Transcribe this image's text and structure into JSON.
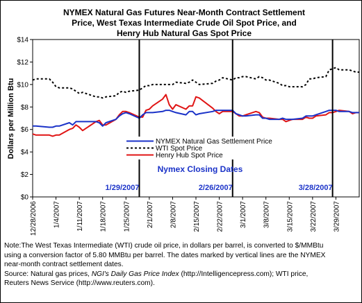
{
  "chart_data": {
    "type": "line",
    "title_lines": [
      "NYMEX Natural Gas Futures Near-Month Contract Settlement",
      "Price, West Texas Intermediate Crude Oil Spot Price, and",
      "Henry Hub Natural Gas Spot Price"
    ],
    "ylabel": "Dollars per Million Btu",
    "xlabel": "",
    "ylim": [
      0,
      14
    ],
    "yticks": [
      "$0",
      "$2",
      "$4",
      "$6",
      "$8",
      "$10",
      "$12",
      "$14"
    ],
    "yticks_values": [
      0,
      2,
      4,
      6,
      8,
      10,
      12,
      14
    ],
    "x_start": "2006-12-28",
    "x_end": "2007-04-05",
    "xtick_labels": [
      "12/28/2006",
      "1/4/2007",
      "1/11/2007",
      "1/18/2007",
      "1/25/2007",
      "2/1/2007",
      "2/8/2007",
      "2/15/2007",
      "2/22/2007",
      "3/1/2007",
      "3/8/2007",
      "3/15/2007",
      "3/22/2007",
      "3/29/2007"
    ],
    "xtick_dates": [
      "2006-12-28",
      "2007-01-04",
      "2007-01-11",
      "2007-01-18",
      "2007-01-25",
      "2007-02-01",
      "2007-02-08",
      "2007-02-15",
      "2007-02-22",
      "2007-03-01",
      "2007-03-08",
      "2007-03-15",
      "2007-03-22",
      "2007-03-29"
    ],
    "series": [
      {
        "name": "NYMEX Natural Gas Settlement Price",
        "color": "#1a32c8",
        "style": "solid",
        "points": [
          [
            "2006-12-28",
            6.3
          ],
          [
            "2006-12-29",
            6.3
          ],
          [
            "2007-01-02",
            6.2
          ],
          [
            "2007-01-03",
            6.2
          ],
          [
            "2007-01-04",
            6.3
          ],
          [
            "2007-01-05",
            6.3
          ],
          [
            "2007-01-08",
            6.6
          ],
          [
            "2007-01-09",
            6.4
          ],
          [
            "2007-01-10",
            6.7
          ],
          [
            "2007-01-11",
            6.7
          ],
          [
            "2007-01-12",
            6.7
          ],
          [
            "2007-01-16",
            6.7
          ],
          [
            "2007-01-17",
            6.6
          ],
          [
            "2007-01-18",
            6.3
          ],
          [
            "2007-01-19",
            6.6
          ],
          [
            "2007-01-22",
            6.9
          ],
          [
            "2007-01-23",
            7.2
          ],
          [
            "2007-01-24",
            7.4
          ],
          [
            "2007-01-25",
            7.5
          ],
          [
            "2007-01-26",
            7.4
          ],
          [
            "2007-01-29",
            7.0
          ],
          [
            "2007-01-30",
            7.3
          ],
          [
            "2007-01-31",
            7.5
          ],
          [
            "2007-02-01",
            7.5
          ],
          [
            "2007-02-02",
            7.5
          ],
          [
            "2007-02-05",
            7.6
          ],
          [
            "2007-02-06",
            7.7
          ],
          [
            "2007-02-07",
            7.7
          ],
          [
            "2007-02-08",
            7.6
          ],
          [
            "2007-02-09",
            7.5
          ],
          [
            "2007-02-12",
            7.3
          ],
          [
            "2007-02-13",
            7.6
          ],
          [
            "2007-02-14",
            7.6
          ],
          [
            "2007-02-15",
            7.3
          ],
          [
            "2007-02-16",
            7.4
          ],
          [
            "2007-02-20",
            7.6
          ],
          [
            "2007-02-21",
            7.7
          ],
          [
            "2007-02-22",
            7.7
          ],
          [
            "2007-02-23",
            7.7
          ],
          [
            "2007-02-26",
            7.7
          ],
          [
            "2007-02-27",
            7.4
          ],
          [
            "2007-02-28",
            7.3
          ],
          [
            "2007-03-01",
            7.2
          ],
          [
            "2007-03-02",
            7.2
          ],
          [
            "2007-03-05",
            7.3
          ],
          [
            "2007-03-06",
            7.3
          ],
          [
            "2007-03-07",
            7.0
          ],
          [
            "2007-03-08",
            7.0
          ],
          [
            "2007-03-09",
            6.9
          ],
          [
            "2007-03-12",
            6.9
          ],
          [
            "2007-03-13",
            7.0
          ],
          [
            "2007-03-14",
            6.9
          ],
          [
            "2007-03-15",
            6.9
          ],
          [
            "2007-03-16",
            6.9
          ],
          [
            "2007-03-19",
            7.0
          ],
          [
            "2007-03-20",
            7.2
          ],
          [
            "2007-03-21",
            7.2
          ],
          [
            "2007-03-22",
            7.2
          ],
          [
            "2007-03-23",
            7.3
          ],
          [
            "2007-03-26",
            7.6
          ],
          [
            "2007-03-27",
            7.7
          ],
          [
            "2007-03-28",
            7.7
          ],
          [
            "2007-03-29",
            7.7
          ],
          [
            "2007-03-30",
            7.6
          ],
          [
            "2007-04-02",
            7.6
          ],
          [
            "2007-04-03",
            7.5
          ],
          [
            "2007-04-04",
            7.5
          ],
          [
            "2007-04-05",
            7.5
          ]
        ]
      },
      {
        "name": "WTI Spot Price",
        "color": "#000000",
        "style": "dotted",
        "points": [
          [
            "2006-12-28",
            10.4
          ],
          [
            "2006-12-29",
            10.5
          ],
          [
            "2007-01-02",
            10.5
          ],
          [
            "2007-01-03",
            10.2
          ],
          [
            "2007-01-04",
            9.8
          ],
          [
            "2007-01-05",
            9.7
          ],
          [
            "2007-01-08",
            9.7
          ],
          [
            "2007-01-09",
            9.6
          ],
          [
            "2007-01-10",
            9.4
          ],
          [
            "2007-01-11",
            9.2
          ],
          [
            "2007-01-12",
            9.3
          ],
          [
            "2007-01-16",
            8.9
          ],
          [
            "2007-01-17",
            8.9
          ],
          [
            "2007-01-18",
            8.8
          ],
          [
            "2007-01-19",
            8.9
          ],
          [
            "2007-01-22",
            9.0
          ],
          [
            "2007-01-23",
            9.3
          ],
          [
            "2007-01-24",
            9.4
          ],
          [
            "2007-01-25",
            9.3
          ],
          [
            "2007-01-26",
            9.4
          ],
          [
            "2007-01-29",
            9.5
          ],
          [
            "2007-01-30",
            9.7
          ],
          [
            "2007-01-31",
            9.9
          ],
          [
            "2007-02-01",
            9.9
          ],
          [
            "2007-02-02",
            10.0
          ],
          [
            "2007-02-05",
            10.0
          ],
          [
            "2007-02-06",
            10.0
          ],
          [
            "2007-02-07",
            10.0
          ],
          [
            "2007-02-08",
            10.0
          ],
          [
            "2007-02-09",
            10.2
          ],
          [
            "2007-02-12",
            10.1
          ],
          [
            "2007-02-13",
            10.2
          ],
          [
            "2007-02-14",
            10.4
          ],
          [
            "2007-02-15",
            10.2
          ],
          [
            "2007-02-16",
            10.0
          ],
          [
            "2007-02-20",
            10.1
          ],
          [
            "2007-02-21",
            10.3
          ],
          [
            "2007-02-22",
            10.4
          ],
          [
            "2007-02-23",
            10.6
          ],
          [
            "2007-02-26",
            10.4
          ],
          [
            "2007-02-27",
            10.6
          ],
          [
            "2007-02-28",
            10.6
          ],
          [
            "2007-03-01",
            10.7
          ],
          [
            "2007-03-02",
            10.7
          ],
          [
            "2007-03-05",
            10.5
          ],
          [
            "2007-03-06",
            10.7
          ],
          [
            "2007-03-07",
            10.6
          ],
          [
            "2007-03-08",
            10.4
          ],
          [
            "2007-03-09",
            10.4
          ],
          [
            "2007-03-12",
            10.1
          ],
          [
            "2007-03-13",
            9.9
          ],
          [
            "2007-03-14",
            9.9
          ],
          [
            "2007-03-15",
            9.8
          ],
          [
            "2007-03-16",
            9.8
          ],
          [
            "2007-03-19",
            9.8
          ],
          [
            "2007-03-20",
            10.0
          ],
          [
            "2007-03-21",
            10.5
          ],
          [
            "2007-03-22",
            10.5
          ],
          [
            "2007-03-23",
            10.6
          ],
          [
            "2007-03-26",
            10.7
          ],
          [
            "2007-03-27",
            11.3
          ],
          [
            "2007-03-28",
            11.4
          ],
          [
            "2007-03-29",
            11.5
          ],
          [
            "2007-03-30",
            11.3
          ],
          [
            "2007-04-02",
            11.3
          ],
          [
            "2007-04-03",
            11.2
          ],
          [
            "2007-04-04",
            11.1
          ],
          [
            "2007-04-05",
            11.1
          ]
        ]
      },
      {
        "name": "Henry Hub Spot Price",
        "color": "#e01414",
        "style": "solid",
        "points": [
          [
            "2006-12-28",
            5.6
          ],
          [
            "2006-12-29",
            5.5
          ],
          [
            "2007-01-02",
            5.5
          ],
          [
            "2007-01-03",
            5.4
          ],
          [
            "2007-01-04",
            5.5
          ],
          [
            "2007-01-05",
            5.5
          ],
          [
            "2007-01-08",
            6.0
          ],
          [
            "2007-01-09",
            6.1
          ],
          [
            "2007-01-10",
            6.4
          ],
          [
            "2007-01-11",
            6.2
          ],
          [
            "2007-01-12",
            5.9
          ],
          [
            "2007-01-16",
            6.7
          ],
          [
            "2007-01-17",
            6.8
          ],
          [
            "2007-01-18",
            6.4
          ],
          [
            "2007-01-19",
            6.4
          ],
          [
            "2007-01-22",
            6.9
          ],
          [
            "2007-01-23",
            7.3
          ],
          [
            "2007-01-24",
            7.6
          ],
          [
            "2007-01-25",
            7.6
          ],
          [
            "2007-01-26",
            7.5
          ],
          [
            "2007-01-29",
            7.1
          ],
          [
            "2007-01-30",
            7.1
          ],
          [
            "2007-01-31",
            7.7
          ],
          [
            "2007-02-01",
            7.8
          ],
          [
            "2007-02-02",
            8.1
          ],
          [
            "2007-02-05",
            8.7
          ],
          [
            "2007-02-06",
            9.1
          ],
          [
            "2007-02-07",
            8.2
          ],
          [
            "2007-02-08",
            7.8
          ],
          [
            "2007-02-09",
            8.2
          ],
          [
            "2007-02-12",
            7.8
          ],
          [
            "2007-02-13",
            8.1
          ],
          [
            "2007-02-14",
            8.1
          ],
          [
            "2007-02-15",
            8.9
          ],
          [
            "2007-02-16",
            8.8
          ],
          [
            "2007-02-20",
            7.9
          ],
          [
            "2007-02-21",
            7.6
          ],
          [
            "2007-02-22",
            7.4
          ],
          [
            "2007-02-23",
            7.6
          ],
          [
            "2007-02-26",
            7.6
          ],
          [
            "2007-02-27",
            7.4
          ],
          [
            "2007-02-28",
            7.2
          ],
          [
            "2007-03-01",
            7.2
          ],
          [
            "2007-03-02",
            7.3
          ],
          [
            "2007-03-05",
            7.6
          ],
          [
            "2007-03-06",
            7.5
          ],
          [
            "2007-03-07",
            7.1
          ],
          [
            "2007-03-08",
            7.0
          ],
          [
            "2007-03-09",
            7.0
          ],
          [
            "2007-03-12",
            6.9
          ],
          [
            "2007-03-13",
            6.9
          ],
          [
            "2007-03-14",
            6.7
          ],
          [
            "2007-03-15",
            6.8
          ],
          [
            "2007-03-16",
            6.9
          ],
          [
            "2007-03-19",
            6.9
          ],
          [
            "2007-03-20",
            7.1
          ],
          [
            "2007-03-21",
            7.0
          ],
          [
            "2007-03-22",
            7.0
          ],
          [
            "2007-03-23",
            7.2
          ],
          [
            "2007-03-26",
            7.3
          ],
          [
            "2007-03-27",
            7.5
          ],
          [
            "2007-03-28",
            7.5
          ],
          [
            "2007-03-29",
            7.6
          ],
          [
            "2007-03-30",
            7.7
          ],
          [
            "2007-04-02",
            7.6
          ],
          [
            "2007-04-03",
            7.4
          ],
          [
            "2007-04-04",
            7.5
          ],
          [
            "2007-04-05",
            7.5
          ]
        ]
      }
    ],
    "vlines": [
      {
        "date": "2007-01-29",
        "label": "1/29/2007"
      },
      {
        "date": "2007-02-26",
        "label": "2/26/2007"
      },
      {
        "date": "2007-03-28",
        "label": "3/28/2007"
      }
    ],
    "annotation": "Nymex Closing Dates",
    "grid": false,
    "legend_placement": "center"
  },
  "note": {
    "line1": "Note:The West Texas Intermediate (WTI) crude oil price, in dollars per barrel,  is converted to $/MMBtu",
    "line2": "using a conversion factor of 5.80 MMBtu per barrel.  The dates marked by vertical lines are the NYMEX",
    "line3": "near-month contract settlement dates.",
    "source_prefix": "Source: Natural gas prices, ",
    "source_italic": "NGI's Daily Gas Price Index",
    "source_suffix": " (http://Intelligencepress.com); WTI price,",
    "line5": "Reuters News Service (http://www.reuters.com)."
  }
}
